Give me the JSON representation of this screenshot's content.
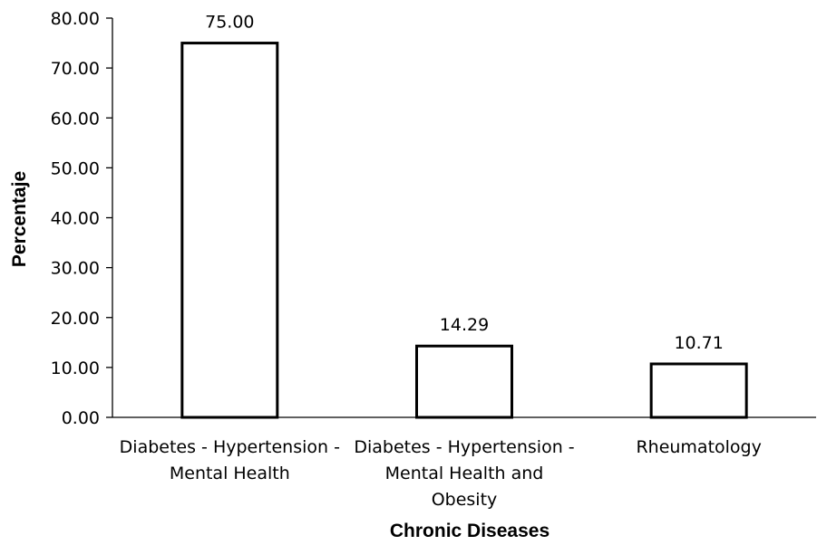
{
  "chart_data": {
    "type": "bar",
    "title": "",
    "xlabel": "Chronic Diseases",
    "ylabel": "Percentaje",
    "categories": [
      [
        "Diabetes - Hypertension -",
        "Mental Health"
      ],
      [
        "Diabetes - Hypertension -",
        "Mental Health and",
        "Obesity"
      ],
      [
        "Rheumatology"
      ]
    ],
    "values": [
      75.0,
      14.29,
      10.71
    ],
    "data_labels": [
      "75.00",
      "14.29",
      "10.71"
    ],
    "ylim": [
      0,
      80
    ],
    "yticks": [
      "0.00",
      "10.00",
      "20.00",
      "30.00",
      "40.00",
      "50.00",
      "60.00",
      "70.00",
      "80.00"
    ],
    "grid": false,
    "legend": "none",
    "bar_fill": "#ffffff",
    "bar_stroke": "#000000"
  }
}
